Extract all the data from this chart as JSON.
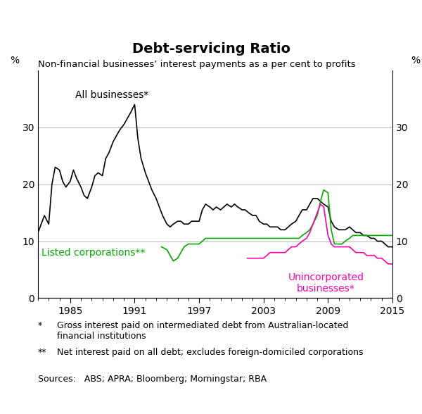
{
  "title": "Debt-servicing Ratio",
  "subtitle": "Non-financial businesses’ interest payments as a per cent to profits",
  "ylabel_left": "%",
  "ylabel_right": "%",
  "xlim": [
    1982,
    2015
  ],
  "ylim": [
    0,
    40
  ],
  "yticks": [
    0,
    10,
    20,
    30
  ],
  "xticks": [
    1985,
    1991,
    1997,
    2003,
    2009,
    2015
  ],
  "footnote1_marker": "*",
  "footnote1": "Gross interest paid on intermediated debt from Australian-located\nfinancial institutions",
  "footnote2_marker": "**",
  "footnote2": "Net interest paid on all debt; excludes foreign-domiciled corporations",
  "sources": "Sources:   ABS; APRA; Bloomberg; Morningstar; RBA",
  "all_businesses_color": "#000000",
  "listed_color": "#00aa00",
  "unincorp_color": "#ff00aa",
  "all_businesses_x": [
    1982.0,
    1982.3,
    1982.6,
    1983.0,
    1983.3,
    1983.6,
    1984.0,
    1984.3,
    1984.6,
    1985.0,
    1985.3,
    1985.6,
    1986.0,
    1986.3,
    1986.6,
    1987.0,
    1987.3,
    1987.6,
    1988.0,
    1988.3,
    1988.6,
    1989.0,
    1989.3,
    1989.6,
    1990.0,
    1990.3,
    1990.6,
    1991.0,
    1991.3,
    1991.6,
    1992.0,
    1992.3,
    1992.6,
    1993.0,
    1993.3,
    1993.6,
    1994.0,
    1994.3,
    1994.6,
    1995.0,
    1995.3,
    1995.6,
    1996.0,
    1996.3,
    1996.6,
    1997.0,
    1997.3,
    1997.6,
    1998.0,
    1998.3,
    1998.6,
    1999.0,
    1999.3,
    1999.6,
    2000.0,
    2000.3,
    2000.6,
    2001.0,
    2001.3,
    2001.6,
    2002.0,
    2002.3,
    2002.6,
    2003.0,
    2003.3,
    2003.6,
    2004.0,
    2004.3,
    2004.6,
    2005.0,
    2005.3,
    2005.6,
    2006.0,
    2006.3,
    2006.6,
    2007.0,
    2007.3,
    2007.6,
    2008.0,
    2008.3,
    2008.6,
    2009.0,
    2009.3,
    2009.6,
    2010.0,
    2010.3,
    2010.6,
    2011.0,
    2011.3,
    2011.6,
    2012.0,
    2012.3,
    2012.6,
    2013.0,
    2013.3,
    2013.6,
    2014.0,
    2014.3,
    2014.6,
    2015.0
  ],
  "all_businesses_y": [
    11.5,
    13.0,
    14.5,
    13.0,
    20.0,
    23.0,
    22.5,
    20.5,
    19.5,
    20.5,
    22.5,
    21.0,
    19.5,
    18.0,
    17.5,
    19.5,
    21.5,
    22.0,
    21.5,
    24.5,
    25.5,
    27.5,
    28.5,
    29.5,
    30.5,
    31.5,
    32.5,
    34.0,
    28.0,
    24.5,
    22.0,
    20.5,
    19.0,
    17.5,
    16.0,
    14.5,
    13.0,
    12.5,
    13.0,
    13.5,
    13.5,
    13.0,
    13.0,
    13.5,
    13.5,
    13.5,
    15.5,
    16.5,
    16.0,
    15.5,
    16.0,
    15.5,
    16.0,
    16.5,
    16.0,
    16.5,
    16.0,
    15.5,
    15.5,
    15.0,
    14.5,
    14.5,
    13.5,
    13.0,
    13.0,
    12.5,
    12.5,
    12.5,
    12.0,
    12.0,
    12.5,
    13.0,
    13.5,
    14.5,
    15.5,
    15.5,
    16.5,
    17.5,
    17.5,
    17.0,
    16.5,
    16.0,
    13.5,
    12.5,
    12.0,
    12.0,
    12.0,
    12.5,
    12.0,
    11.5,
    11.5,
    11.0,
    11.0,
    10.5,
    10.5,
    10.0,
    10.0,
    9.5,
    9.0,
    9.0
  ],
  "listed_x": [
    1993.5,
    1994.0,
    1994.3,
    1994.6,
    1995.0,
    1995.3,
    1995.6,
    1996.0,
    1996.3,
    1996.6,
    1997.0,
    1997.3,
    1997.6,
    1998.0,
    1998.3,
    1998.6,
    1999.0,
    1999.3,
    1999.6,
    2000.0,
    2000.3,
    2000.6,
    2001.0,
    2001.3,
    2001.6,
    2002.0,
    2002.3,
    2002.6,
    2003.0,
    2003.3,
    2003.6,
    2004.0,
    2004.3,
    2004.6,
    2005.0,
    2005.3,
    2005.6,
    2006.0,
    2006.3,
    2006.6,
    2007.0,
    2007.3,
    2007.6,
    2008.0,
    2008.3,
    2008.6,
    2009.0,
    2009.3,
    2009.6,
    2010.0,
    2010.3,
    2010.6,
    2011.0,
    2011.3,
    2011.6,
    2012.0,
    2012.3,
    2012.6,
    2013.0,
    2013.3,
    2013.6,
    2014.0,
    2014.3,
    2014.6,
    2015.0
  ],
  "listed_y": [
    9.0,
    8.5,
    7.5,
    6.5,
    7.0,
    8.0,
    9.0,
    9.5,
    9.5,
    9.5,
    9.5,
    10.0,
    10.5,
    10.5,
    10.5,
    10.5,
    10.5,
    10.5,
    10.5,
    10.5,
    10.5,
    10.5,
    10.5,
    10.5,
    10.5,
    10.5,
    10.5,
    10.5,
    10.5,
    10.5,
    10.5,
    10.5,
    10.5,
    10.5,
    10.5,
    10.5,
    10.5,
    10.5,
    10.5,
    11.0,
    11.5,
    12.0,
    13.0,
    14.5,
    17.0,
    19.0,
    18.5,
    12.0,
    9.5,
    9.5,
    9.5,
    10.0,
    10.5,
    11.0,
    11.0,
    11.0,
    11.0,
    11.0,
    11.0,
    11.0,
    11.0,
    11.0,
    11.0,
    11.0,
    11.0
  ],
  "unincorp_x": [
    2001.5,
    2002.0,
    2002.3,
    2002.6,
    2003.0,
    2003.3,
    2003.6,
    2004.0,
    2004.3,
    2004.6,
    2005.0,
    2005.3,
    2005.6,
    2006.0,
    2006.3,
    2006.6,
    2007.0,
    2007.3,
    2007.6,
    2008.0,
    2008.3,
    2008.6,
    2009.0,
    2009.3,
    2009.6,
    2010.0,
    2010.3,
    2010.6,
    2011.0,
    2011.3,
    2011.6,
    2012.0,
    2012.3,
    2012.6,
    2013.0,
    2013.3,
    2013.6,
    2014.0,
    2014.3,
    2014.6,
    2015.0
  ],
  "unincorp_y": [
    7.0,
    7.0,
    7.0,
    7.0,
    7.0,
    7.5,
    8.0,
    8.0,
    8.0,
    8.0,
    8.0,
    8.5,
    9.0,
    9.0,
    9.5,
    10.0,
    10.5,
    11.5,
    13.0,
    15.0,
    16.5,
    16.0,
    11.0,
    9.5,
    9.0,
    9.0,
    9.0,
    9.0,
    9.0,
    8.5,
    8.0,
    8.0,
    8.0,
    7.5,
    7.5,
    7.5,
    7.0,
    7.0,
    6.5,
    6.0,
    6.0
  ]
}
